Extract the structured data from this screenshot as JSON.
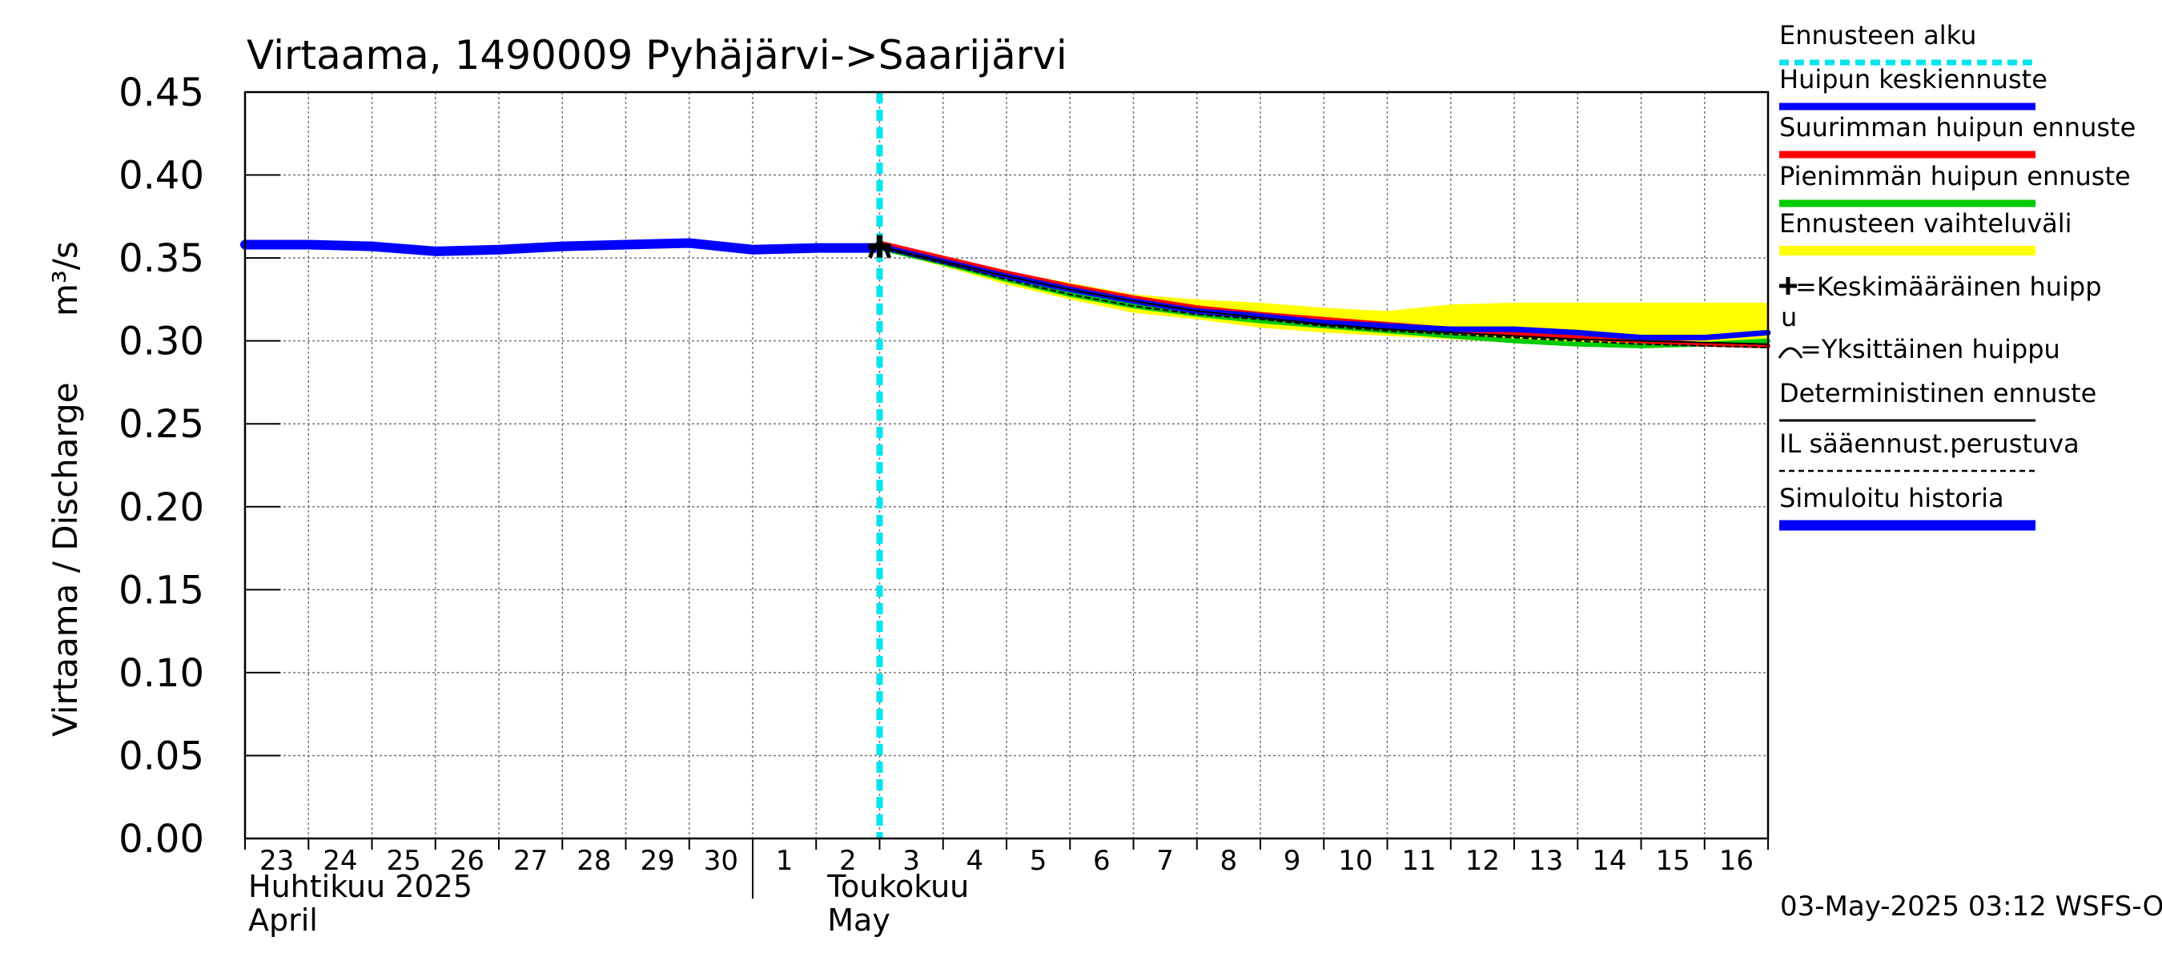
{
  "chart_data": {
    "type": "line",
    "title": "Virtaama, 1490009 Pyhäjärvi->Saarijärvi",
    "ylabel": "Virtaama / Discharge",
    "yunit": "m³/s",
    "ylim": [
      0,
      0.45
    ],
    "yticks": [
      "0.00",
      "0.05",
      "0.10",
      "0.15",
      "0.20",
      "0.25",
      "0.30",
      "0.35",
      "0.40",
      "0.45"
    ],
    "x_range": [
      "2025-04-23",
      "2025-05-17"
    ],
    "x_day_labels": [
      "23",
      "24",
      "25",
      "26",
      "27",
      "28",
      "29",
      "30",
      "1",
      "2",
      "3",
      "4",
      "5",
      "6",
      "7",
      "8",
      "9",
      "10",
      "11",
      "12",
      "13",
      "14",
      "15",
      "16"
    ],
    "month_labels": [
      {
        "fi": "Huhtikuu  2025",
        "en": "April"
      },
      {
        "fi": "Toukokuu",
        "en": "May"
      }
    ],
    "grid": true,
    "forecast_start": "2025-05-03",
    "series": [
      {
        "name": "Simuloitu historia",
        "color": "#0000ff",
        "x": [
          "2025-04-23",
          "2025-04-24",
          "2025-04-25",
          "2025-04-26",
          "2025-04-27",
          "2025-04-28",
          "2025-04-29",
          "2025-04-30",
          "2025-05-01",
          "2025-05-02",
          "2025-05-03"
        ],
        "values": [
          0.358,
          0.358,
          0.357,
          0.354,
          0.355,
          0.357,
          0.358,
          0.359,
          0.355,
          0.356,
          0.356
        ]
      },
      {
        "name": "Ennusteen vaihteluväli",
        "color": "#ffff00",
        "x": [
          "2025-05-03",
          "2025-05-04",
          "2025-05-05",
          "2025-05-06",
          "2025-05-07",
          "2025-05-08",
          "2025-05-09",
          "2025-05-10",
          "2025-05-11",
          "2025-05-12",
          "2025-05-13",
          "2025-05-14",
          "2025-05-15",
          "2025-05-16",
          "2025-05-17"
        ],
        "upper": [
          0.359,
          0.351,
          0.342,
          0.335,
          0.328,
          0.325,
          0.323,
          0.32,
          0.318,
          0.322,
          0.323,
          0.323,
          0.323,
          0.323,
          0.323
        ],
        "lower": [
          0.355,
          0.345,
          0.334,
          0.325,
          0.317,
          0.313,
          0.308,
          0.305,
          0.303,
          0.301,
          0.299,
          0.298,
          0.297,
          0.297,
          0.297
        ]
      },
      {
        "name": "Suurimman huipun ennuste",
        "color": "#ff0000",
        "x": [
          "2025-05-03",
          "2025-05-04",
          "2025-05-05",
          "2025-05-06",
          "2025-05-07",
          "2025-05-08",
          "2025-05-09",
          "2025-05-10",
          "2025-05-11",
          "2025-05-12",
          "2025-05-13",
          "2025-05-14",
          "2025-05-15",
          "2025-05-16",
          "2025-05-17"
        ],
        "values": [
          0.359,
          0.35,
          0.341,
          0.333,
          0.326,
          0.32,
          0.316,
          0.313,
          0.31,
          0.307,
          0.304,
          0.302,
          0.3,
          0.298,
          0.297
        ]
      },
      {
        "name": "Pienimmän huipun ennuste",
        "color": "#00cc00",
        "x": [
          "2025-05-03",
          "2025-05-04",
          "2025-05-05",
          "2025-05-06",
          "2025-05-07",
          "2025-05-08",
          "2025-05-09",
          "2025-05-10",
          "2025-05-11",
          "2025-05-12",
          "2025-05-13",
          "2025-05-14",
          "2025-05-15",
          "2025-05-16",
          "2025-05-17"
        ],
        "values": [
          0.356,
          0.347,
          0.337,
          0.328,
          0.321,
          0.316,
          0.312,
          0.309,
          0.306,
          0.303,
          0.3,
          0.298,
          0.297,
          0.298,
          0.3
        ]
      },
      {
        "name": "Huipun keskiennuste",
        "color": "#0000ff",
        "x": [
          "2025-05-03",
          "2025-05-04",
          "2025-05-05",
          "2025-05-06",
          "2025-05-07",
          "2025-05-08",
          "2025-05-09",
          "2025-05-10",
          "2025-05-11",
          "2025-05-12",
          "2025-05-13",
          "2025-05-14",
          "2025-05-15",
          "2025-05-16",
          "2025-05-17"
        ],
        "values": [
          0.357,
          0.348,
          0.339,
          0.331,
          0.324,
          0.318,
          0.315,
          0.311,
          0.309,
          0.307,
          0.307,
          0.305,
          0.302,
          0.302,
          0.305
        ]
      },
      {
        "name": "Deterministinen ennuste",
        "color": "#000000",
        "x": [
          "2025-05-03",
          "2025-05-04",
          "2025-05-05",
          "2025-05-06",
          "2025-05-07",
          "2025-05-08",
          "2025-05-09",
          "2025-05-10",
          "2025-05-11",
          "2025-05-12",
          "2025-05-13",
          "2025-05-14",
          "2025-05-15",
          "2025-05-16",
          "2025-05-17"
        ],
        "values": [
          0.357,
          0.348,
          0.339,
          0.331,
          0.324,
          0.318,
          0.314,
          0.31,
          0.307,
          0.305,
          0.303,
          0.301,
          0.3,
          0.299,
          0.298
        ]
      },
      {
        "name": "IL sääennust.perustuva",
        "color": "#000000",
        "x": [
          "2025-05-03",
          "2025-05-04",
          "2025-05-05",
          "2025-05-06",
          "2025-05-07",
          "2025-05-08",
          "2025-05-09",
          "2025-05-10",
          "2025-05-11",
          "2025-05-12",
          "2025-05-13",
          "2025-05-14",
          "2025-05-15",
          "2025-05-16",
          "2025-05-17"
        ],
        "values": [
          0.356,
          0.347,
          0.337,
          0.328,
          0.321,
          0.316,
          0.313,
          0.309,
          0.306,
          0.304,
          0.302,
          0.3,
          0.298,
          0.297,
          0.296
        ]
      }
    ],
    "peak_marker": {
      "x": "2025-05-03",
      "y": 0.357
    },
    "legend": [
      {
        "label": "Ennusteen alku",
        "color": "#00e5ee",
        "style": "dotted"
      },
      {
        "label": "Huipun keskiennuste",
        "color": "#0000ff",
        "style": "solid"
      },
      {
        "label": "Suurimman huipun ennuste",
        "color": "#ff0000",
        "style": "solid"
      },
      {
        "label": "Pienimmän huipun ennuste",
        "color": "#00cc00",
        "style": "solid"
      },
      {
        "label": "Ennusteen vaihteluväli",
        "color": "#ffff00",
        "style": "band"
      },
      {
        "label": "=Keskimääräinen huipp",
        "label2": "u",
        "color": "#000000",
        "style": "plus"
      },
      {
        "label": "=Yksittäinen huippu",
        "color": "#000000",
        "style": "arc"
      },
      {
        "label": "Deterministinen ennuste",
        "color": "#000000",
        "style": "thin"
      },
      {
        "label": "IL sääennust.perustuva",
        "color": "#000000",
        "style": "dashed"
      },
      {
        "label": "Simuloitu historia",
        "color": "#0000ff",
        "style": "thick"
      }
    ],
    "legend_placement": "right"
  },
  "footer": {
    "timestamp": "03-May-2025 03:12 WSFS-O"
  }
}
